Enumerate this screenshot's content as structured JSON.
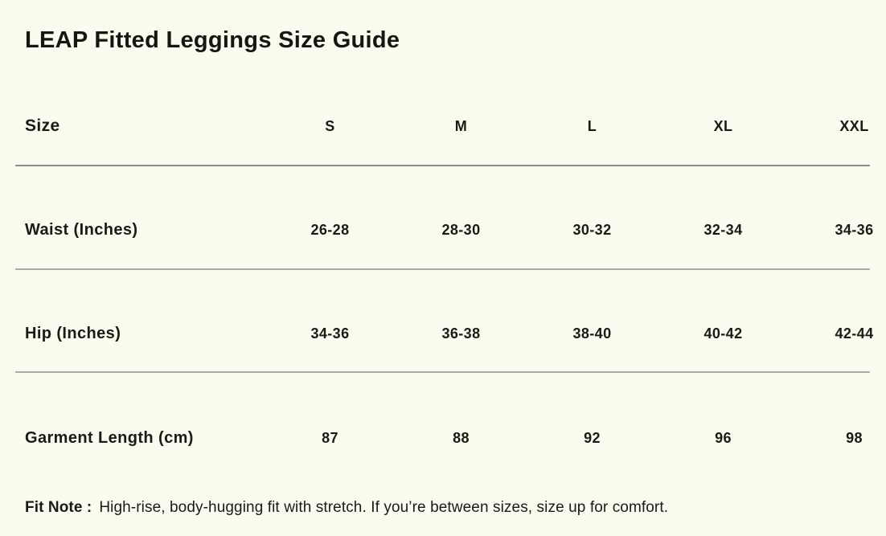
{
  "title": "LEAP Fitted Leggings Size Guide",
  "table": {
    "header": {
      "label": "Size",
      "sizes": [
        "S",
        "M",
        "L",
        "XL",
        "XXL"
      ]
    },
    "rows": [
      {
        "label": "Waist (Inches)",
        "values": [
          "26-28",
          "28-30",
          "30-32",
          "32-34",
          "34-36"
        ]
      },
      {
        "label": "Hip (Inches)",
        "values": [
          "34-36",
          "36-38",
          "38-40",
          "40-42",
          "42-44"
        ]
      },
      {
        "label": "Garment Length (cm)",
        "values": [
          "87",
          "88",
          "92",
          "96",
          "98"
        ]
      }
    ]
  },
  "fit_note": {
    "label": "Fit Note :",
    "text": "High-rise, body-hugging fit with stretch. If you’re between sizes, size up for comfort."
  },
  "colors": {
    "background": "#FCFBF0",
    "text": "#1B1A14",
    "header_rule": "#8D8D8D",
    "row_rule": "#ABABAB"
  }
}
